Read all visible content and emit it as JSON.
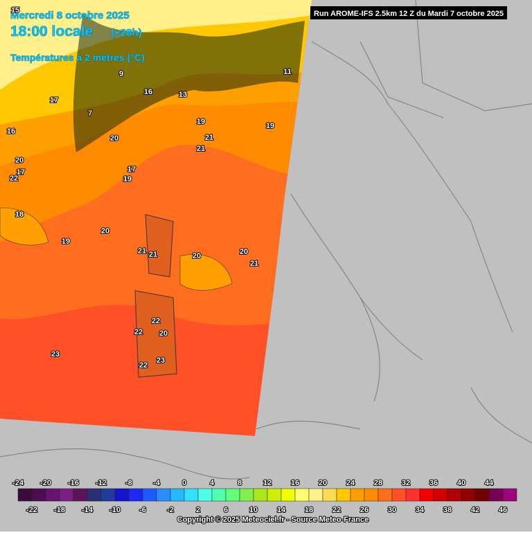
{
  "header": {
    "date": "Mercredi 8 octobre 2025",
    "time": "18:00 locale",
    "lead": "(+28h)",
    "field": "Températures à 2 mètres (°C)"
  },
  "run": "Run AROME-IFS 2.5km 12 Z du Mardi 7 octobre 2025",
  "map_labels": [
    15,
    17,
    16,
    17,
    20,
    22,
    18,
    19,
    20,
    21,
    22,
    23,
    22,
    21,
    22,
    23,
    20,
    19,
    20,
    21,
    20,
    17,
    19,
    20,
    21,
    21,
    19,
    16,
    13,
    11,
    9,
    7
  ],
  "legend": {
    "range": [
      -24,
      48
    ],
    "top_ticks": [
      -24,
      -20,
      -16,
      -12,
      -8,
      -4,
      0,
      4,
      8,
      12,
      16,
      20,
      24,
      28,
      32,
      36,
      40,
      44
    ],
    "bottom_ticks": [
      -22,
      -18,
      -14,
      -10,
      -6,
      -2,
      2,
      6,
      10,
      14,
      18,
      22,
      26,
      30,
      34,
      38,
      42,
      46
    ],
    "colors": [
      "#3c0a3c",
      "#4e0c50",
      "#661470",
      "#7a1e84",
      "#5c1458",
      "#2c2c78",
      "#1e3c9c",
      "#1414c8",
      "#1e28f0",
      "#1e5aff",
      "#2a8cff",
      "#28b8ff",
      "#34e0ff",
      "#50ffe8",
      "#50ffb0",
      "#64ff78",
      "#80f050",
      "#a8e61e",
      "#ccf000",
      "#f0ff00",
      "#ffff70",
      "#fff08c",
      "#ffdc50",
      "#ffc800",
      "#ffa000",
      "#ff8c00",
      "#ff6e1e",
      "#ff5028",
      "#ff3030",
      "#f00000",
      "#d00000",
      "#b00000",
      "#900000",
      "#700000",
      "#780050",
      "#a00078"
    ]
  },
  "copyright": "Copyright © 2025 Meteociel.fr - Source Meteo-France"
}
